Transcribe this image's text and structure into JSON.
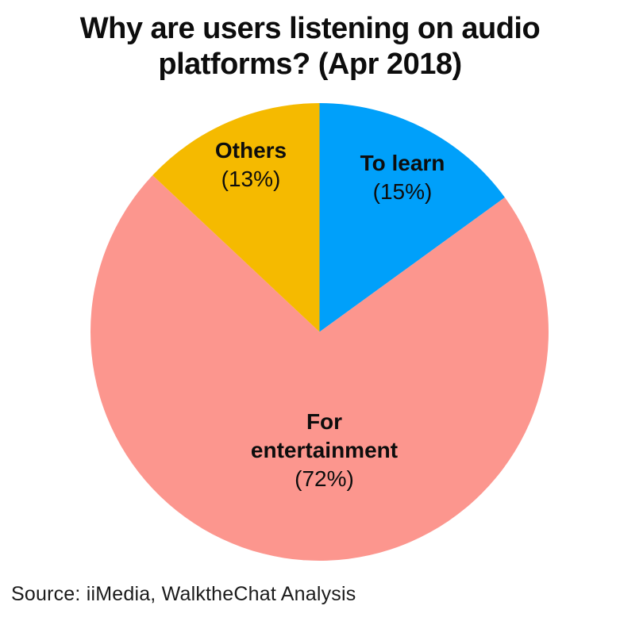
{
  "title": {
    "text": "Why are users listening on audio platforms? (Apr 2018)",
    "lines": [
      "Why are users listening on audio",
      "platforms? (Apr 2018)"
    ]
  },
  "source": {
    "text": "Source: iiMedia, WalktheChat Analysis"
  },
  "colors": {
    "to_learn": "#00A0FA",
    "for_entertainment": "#FC968E",
    "others": "#F5BA00",
    "text": "#0D0D0D",
    "background": "#FFFFFF"
  },
  "chart_data": {
    "type": "pie",
    "title": "Why are users listening on audio platforms? (Apr 2018)",
    "unit": "percent",
    "start_angle_deg": 0,
    "direction": "clockwise",
    "slices": [
      {
        "label": "To learn",
        "value": 15,
        "display": "(15%)",
        "color": "#00A0FA"
      },
      {
        "label": "For entertainment",
        "value": 72,
        "display": "(72%)",
        "color": "#FC968E"
      },
      {
        "label": "Others",
        "value": 13,
        "display": "(13%)",
        "color": "#F5BA00"
      }
    ],
    "legend": "none",
    "labels_on_slices": true,
    "source": "iiMedia, WalktheChat Analysis"
  }
}
